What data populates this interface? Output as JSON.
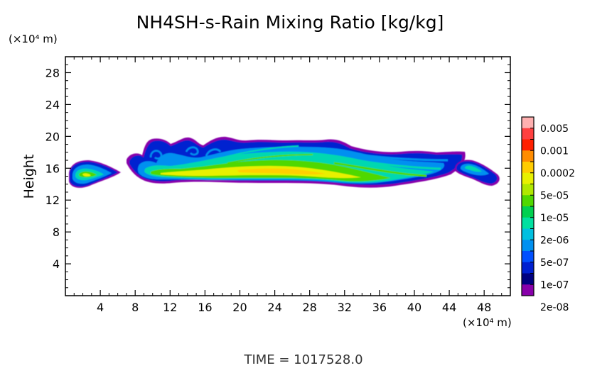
{
  "chart_data": {
    "type": "heatmap",
    "title": "NH4SH-s-Rain Mixing Ratio [kg/kg]",
    "ylabel": "Height",
    "xlabel": "",
    "x_unit_label": "(×10⁴ m)",
    "y_unit_label": "(×10⁴ m)",
    "xlim": [
      0,
      51
    ],
    "ylim": [
      0,
      30
    ],
    "x_ticks": [
      "4",
      "8",
      "12",
      "16",
      "20",
      "24",
      "28",
      "32",
      "36",
      "40",
      "44",
      "48"
    ],
    "y_ticks": [
      "4",
      "8",
      "12",
      "16",
      "20",
      "24",
      "28"
    ],
    "footer": "TIME = 1017528.0",
    "colorbar": {
      "labels": [
        "0.005",
        "0.001",
        "0.0002",
        "5e-05",
        "1e-05",
        "2e-06",
        "5e-07",
        "1e-07",
        "2e-08"
      ],
      "colors_top_to_bottom": [
        "#ffb0b0",
        "#ff4040",
        "#ff2000",
        "#ff8c00",
        "#ffcc00",
        "#e8f000",
        "#b0e800",
        "#50d800",
        "#00d050",
        "#00e0a0",
        "#00c0e0",
        "#0090f0",
        "#0050ff",
        "#0020d0",
        "#000080",
        "#8800aa"
      ]
    },
    "regions": [
      {
        "x": [
          0.5,
          5.5
        ],
        "y": [
          13.7,
          17.0
        ],
        "peak": "1e-05"
      },
      {
        "x": [
          7.5,
          49.0
        ],
        "y": [
          13.8,
          19.8
        ],
        "peak": "0.0002"
      },
      {
        "x": [
          45.5,
          49.5
        ],
        "y": [
          13.5,
          16.8
        ],
        "peak": "5e-06"
      }
    ]
  }
}
